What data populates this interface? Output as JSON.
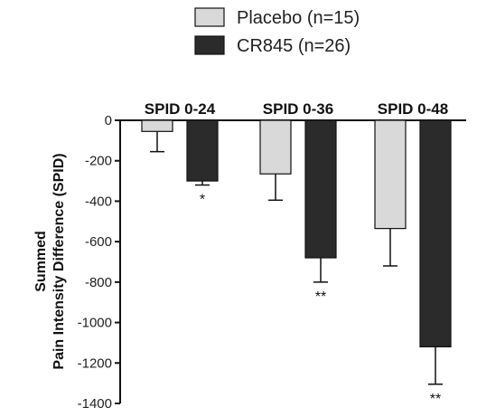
{
  "chart_data": {
    "type": "bar",
    "title": "",
    "xlabel": "",
    "ylabel": [
      "Summed",
      "Pain Intensity Difference (SPID)"
    ],
    "ylim": [
      -1400,
      0
    ],
    "yticks": [
      0,
      -200,
      -400,
      -600,
      -800,
      -1000,
      -1200,
      -1400
    ],
    "categories": [
      "SPID 0-24",
      "SPID 0-36",
      "SPID 0-48"
    ],
    "legend_position": "top-center",
    "grid": false,
    "series": [
      {
        "name": "Placebo (n=15)",
        "color": "#d9d9d9",
        "values": [
          -55,
          -265,
          -535
        ],
        "errors": [
          100,
          130,
          185
        ],
        "significance": [
          "",
          "",
          ""
        ]
      },
      {
        "name": "CR845 (n=26)",
        "color": "#2b2b2b",
        "values": [
          -300,
          -680,
          -1120
        ],
        "errors": [
          20,
          120,
          185
        ],
        "significance": [
          "*",
          "**",
          "**"
        ]
      }
    ]
  }
}
